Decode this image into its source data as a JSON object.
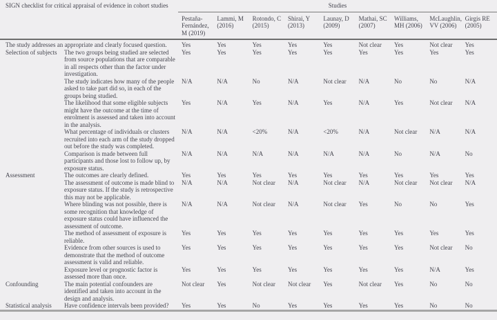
{
  "table": {
    "title": "SIGN checklist for critical appraisal of evidence in cohort studies",
    "studies_label": "Studies",
    "columns": [
      "Pestaña-Fernández, M (2019)",
      "Lammi, M (2016)",
      "Rotondo, C (2015)",
      "Shirai, Y (2013)",
      "Launay, D (2009)",
      "Mathai, SC (2007)",
      "Williams, MH (2006)",
      "McLaughlin, VV (2006)",
      "Girgis RE (2005)"
    ],
    "answer_options": [
      "Yes",
      "No",
      "N/A",
      "Not clear",
      "<20%"
    ],
    "rows": [
      {
        "category": "",
        "question": "The study addresses an appropriate and clearly focused question.",
        "full_width": true,
        "values": [
          "Yes",
          "Yes",
          "Yes",
          "Yes",
          "Yes",
          "Not clear",
          "Yes",
          "Not clear",
          "Yes"
        ]
      },
      {
        "category": "Selection of subjects",
        "question": "The two groups being studied are selected from source populations that are comparable in all respects other than the factor under investigation.",
        "full_width": false,
        "values": [
          "Yes",
          "Yes",
          "Yes",
          "Yes",
          "Yes",
          "Yes",
          "Yes",
          "Yes",
          "Yes"
        ]
      },
      {
        "category": "",
        "question": "The study indicates how many of the people asked to take part did so, in each of the groups being studied.",
        "full_width": false,
        "values": [
          "N/A",
          "N/A",
          "No",
          "N/A",
          "Not clear",
          "N/A",
          "No",
          "No",
          "N/A"
        ]
      },
      {
        "category": "",
        "question": "The likelihood that some eligible subjects might have the outcome at the time of enrolment is assessed and taken into account in the analysis.",
        "full_width": false,
        "values": [
          "Yes",
          "N/A",
          "Yes",
          "N/A",
          "Yes",
          "N/A",
          "Yes",
          "Not clear",
          "N/A"
        ]
      },
      {
        "category": "",
        "question": "What percentage of individuals or clusters recruited into each arm of the study dropped out before the study was completed.",
        "full_width": false,
        "values": [
          "N/A",
          "N/A",
          "<20%",
          "N/A",
          "<20%",
          "N/A",
          "Not clear",
          "N/A",
          "N/A"
        ]
      },
      {
        "category": "",
        "question": "Comparison is made between full participants and those lost to follow up, by exposure status.",
        "full_width": false,
        "values": [
          "N/A",
          "N/A",
          "N/A",
          "N/A",
          "N/A",
          "N/A",
          "No",
          "N/A",
          "No"
        ]
      },
      {
        "category": "Assessment",
        "question": "The outcomes are clearly defined.",
        "full_width": false,
        "values": [
          "Yes",
          "Yes",
          "Yes",
          "Yes",
          "Yes",
          "Yes",
          "Yes",
          "Yes",
          "Yes"
        ]
      },
      {
        "category": "",
        "question": "The assessment of outcome is made blind to exposure status. If the study is retrospective this may not be applicable.",
        "full_width": false,
        "values": [
          "N/A",
          "N/A",
          "Not clear",
          "N/A",
          "Not clear",
          "N/A",
          "Not clear",
          "Not clear",
          "N/A"
        ]
      },
      {
        "category": "",
        "question": "Where blinding was not possible, there is some recognition that knowledge of exposure status could have influenced the assessment of outcome.",
        "full_width": false,
        "values": [
          "N/A",
          "N/A",
          "Not clear",
          "N/A",
          "Not clear",
          "Yes",
          "No",
          "No",
          "Yes"
        ]
      },
      {
        "category": "",
        "question": "The method of assessment of exposure is reliable.",
        "full_width": false,
        "values": [
          "Yes",
          "Yes",
          "Yes",
          "Yes",
          "Yes",
          "Yes",
          "Yes",
          "Yes",
          "Yes"
        ]
      },
      {
        "category": "",
        "question": "Evidence from other sources is used to demonstrate that the method of outcome assessment is valid and reliable.",
        "full_width": false,
        "values": [
          "Yes",
          "Yes",
          "Yes",
          "Yes",
          "Yes",
          "Yes",
          "Yes",
          "Not clear",
          "No"
        ]
      },
      {
        "category": "",
        "question": "Exposure level or prognostic factor is assessed more than once.",
        "full_width": false,
        "values": [
          "Yes",
          "Yes",
          "Yes",
          "Yes",
          "Yes",
          "Yes",
          "Yes",
          "N/A",
          "Yes"
        ]
      },
      {
        "category": "Confounding",
        "question": "The main potential confounders are identified and taken into account in the design and analysis.",
        "full_width": false,
        "values": [
          "Not clear",
          "Yes",
          "Not clear",
          "Not clear",
          "Yes",
          "Not clear",
          "Yes",
          "No",
          "No"
        ]
      },
      {
        "category": "Statistical analysis",
        "question": "Have confidence intervals been provided?",
        "full_width": false,
        "values": [
          "Yes",
          "Yes",
          "No",
          "Yes",
          "Yes",
          "Yes",
          "Yes",
          "No",
          "No"
        ]
      }
    ]
  }
}
